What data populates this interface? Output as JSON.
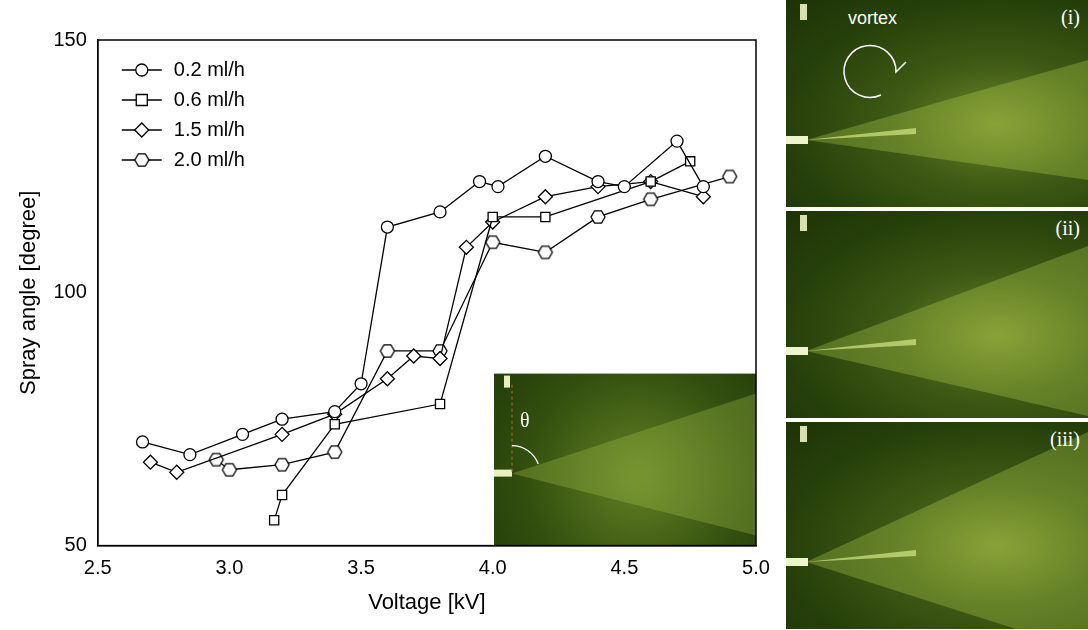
{
  "chart_data": {
    "type": "line",
    "x_label": "Voltage [kV]",
    "y_label": "Spray angle [degree]",
    "xlim": [
      2.5,
      5.0
    ],
    "xticks": [
      2.5,
      {
        "value": 3,
        "label": "3.0"
      },
      3.5,
      {
        "value": 4,
        "label": "4.0"
      },
      4.5,
      {
        "value": 5,
        "label": "5.0"
      }
    ],
    "ylim": [
      50,
      150
    ],
    "yticks": [
      50,
      100,
      150
    ],
    "grid": false,
    "legend": "upper left",
    "inset_label": "θ",
    "series": [
      {
        "name": "0.2 ml/h",
        "color": "#000000",
        "marker": "circle",
        "x": [
          2.67,
          2.85,
          3.05,
          3.2,
          3.4,
          3.5,
          3.6,
          3.8,
          3.95,
          4.02,
          4.2,
          4.4,
          4.5,
          4.7,
          4.8
        ],
        "values": [
          70.5,
          68,
          72,
          75,
          76.5,
          82,
          113,
          116,
          122,
          121,
          127,
          122,
          121,
          130,
          121
        ]
      },
      {
        "name": "0.6 ml/h",
        "color": "#000000",
        "marker": "square",
        "x": [
          3.17,
          3.2,
          3.4,
          3.8,
          4.0,
          4.2,
          4.6,
          4.75
        ],
        "values": [
          55,
          60,
          74,
          78,
          115,
          115,
          122,
          126
        ]
      },
      {
        "name": "1.5 ml/h",
        "color": "#000000",
        "marker": "diamond",
        "x": [
          2.7,
          2.8,
          3.2,
          3.4,
          3.6,
          3.7,
          3.8,
          3.9,
          4.0,
          4.2,
          4.4,
          4.6,
          4.8
        ],
        "values": [
          66.5,
          64.5,
          72,
          76,
          83,
          87.5,
          87,
          109,
          114,
          119,
          121,
          122,
          119
        ]
      },
      {
        "name": "2.0 ml/h",
        "color": "#000000",
        "marker": "hexagon",
        "x": [
          2.95,
          3.0,
          3.2,
          3.4,
          3.6,
          3.8,
          4.0,
          4.2,
          4.4,
          4.6,
          4.9
        ],
        "values": [
          67,
          65,
          66,
          68.5,
          88.5,
          88.5,
          110,
          108,
          115,
          118.5,
          123
        ]
      }
    ]
  },
  "photos": [
    {
      "label": "(i)",
      "annotation": "vortex"
    },
    {
      "label": "(ii)"
    },
    {
      "label": "(iii)"
    }
  ]
}
